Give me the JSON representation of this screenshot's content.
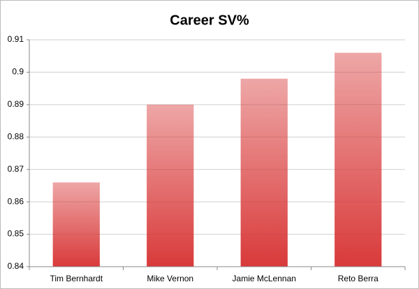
{
  "chart_data": {
    "type": "bar",
    "title": "Career SV%",
    "categories": [
      "Tim Bernhardt",
      "Mike Vernon",
      "Jamie McLennan",
      "Reto Berra"
    ],
    "values": [
      0.866,
      0.89,
      0.898,
      0.906
    ],
    "color": "#d93a3a",
    "ylim": [
      0.84,
      0.91
    ],
    "yticks": [
      0.84,
      0.85,
      0.86,
      0.87,
      0.88,
      0.89,
      0.9,
      0.91
    ],
    "grid": true
  }
}
